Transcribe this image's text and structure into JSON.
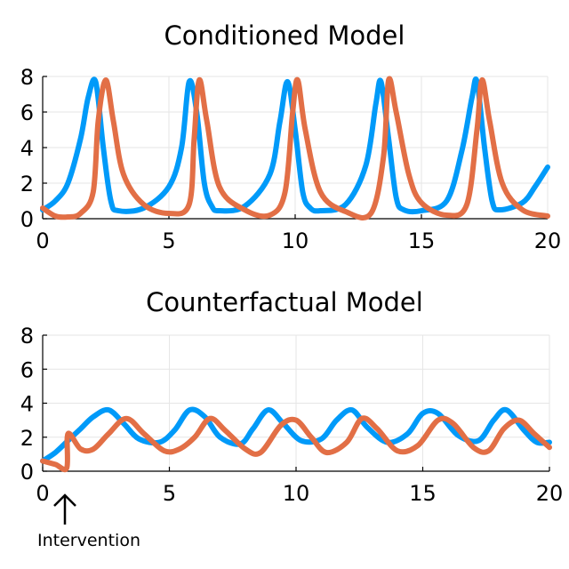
{
  "chart_data": [
    {
      "type": "line",
      "title": "Conditioned Model",
      "xlabel": "",
      "ylabel": "",
      "xlim": [
        0,
        20
      ],
      "ylim": [
        0,
        8
      ],
      "xticks": [
        "0",
        "5",
        "10",
        "15",
        "20"
      ],
      "yticks": [
        "0",
        "2",
        "4",
        "6",
        "8"
      ],
      "grid": true,
      "series": [
        {
          "color": "#009af9",
          "x": [
            0,
            0.5,
            1.0,
            1.5,
            1.8,
            2.1,
            2.4,
            2.7,
            3.0,
            4.0,
            5.0,
            5.5,
            5.8,
            6.1,
            6.4,
            6.7,
            7.0,
            8.0,
            9.0,
            9.4,
            9.7,
            10.0,
            10.3,
            10.6,
            11.0,
            12.0,
            12.8,
            13.2,
            13.4,
            13.7,
            14.0,
            14.3,
            15.0,
            16.0,
            16.6,
            17.0,
            17.2,
            17.5,
            17.8,
            18.1,
            19.0,
            19.5,
            20.0
          ],
          "values": [
            0.5,
            1.0,
            2.0,
            4.5,
            6.8,
            7.7,
            4.0,
            1.0,
            0.45,
            0.6,
            1.8,
            4.0,
            7.7,
            6.0,
            2.0,
            0.7,
            0.45,
            0.7,
            2.5,
            5.5,
            7.7,
            5.0,
            1.5,
            0.6,
            0.45,
            0.8,
            3.0,
            6.5,
            7.7,
            4.5,
            1.2,
            0.5,
            0.45,
            1.0,
            3.8,
            6.8,
            7.7,
            4.0,
            1.0,
            0.5,
            0.9,
            1.8,
            2.9
          ]
        },
        {
          "color": "#e26f46",
          "x": [
            0,
            0.5,
            1.0,
            1.5,
            2.0,
            2.2,
            2.5,
            2.8,
            3.2,
            4.0,
            5.0,
            5.8,
            6.0,
            6.2,
            6.5,
            7.0,
            8.0,
            9.0,
            9.6,
            9.9,
            10.1,
            10.4,
            11.0,
            12.0,
            13.0,
            13.5,
            13.7,
            14.0,
            14.5,
            15.0,
            16.0,
            16.8,
            17.2,
            17.4,
            17.7,
            18.2,
            19.0,
            20.0
          ],
          "values": [
            0.6,
            0.15,
            0.1,
            0.3,
            1.5,
            5.5,
            7.8,
            5.5,
            2.5,
            0.8,
            0.3,
            0.8,
            4.5,
            7.8,
            5.5,
            1.8,
            0.5,
            0.2,
            1.5,
            6.0,
            7.8,
            5.0,
            1.5,
            0.4,
            0.3,
            3.5,
            7.8,
            6.0,
            2.5,
            0.9,
            0.2,
            0.8,
            5.0,
            7.8,
            5.5,
            2.0,
            0.5,
            0.15
          ]
        }
      ]
    },
    {
      "type": "line",
      "title": "Counterfactual Model",
      "xlabel": "",
      "ylabel": "",
      "xlim": [
        0,
        20
      ],
      "ylim": [
        0,
        8
      ],
      "xticks": [
        "0",
        "5",
        "10",
        "15",
        "20"
      ],
      "yticks": [
        "0",
        "2",
        "4",
        "6",
        "8"
      ],
      "grid": true,
      "annotation": {
        "text": "Intervention",
        "x": 1.0,
        "marker": "arrow-up"
      },
      "series": [
        {
          "color": "#009af9",
          "x": [
            0,
            0.5,
            1.0,
            1.5,
            2.0,
            2.6,
            3.2,
            3.8,
            4.6,
            5.2,
            5.8,
            6.4,
            7.0,
            7.8,
            8.3,
            8.9,
            9.5,
            10.2,
            11.0,
            11.6,
            12.2,
            12.8,
            13.6,
            14.4,
            15.0,
            15.6,
            16.4,
            17.2,
            17.8,
            18.3,
            19.0,
            19.5,
            20.0
          ],
          "values": [
            0.6,
            1.1,
            1.8,
            2.5,
            3.2,
            3.6,
            2.8,
            1.9,
            1.7,
            2.4,
            3.6,
            3.2,
            2.0,
            1.6,
            2.5,
            3.6,
            2.8,
            1.8,
            1.9,
            3.0,
            3.6,
            2.6,
            1.7,
            2.2,
            3.4,
            3.4,
            2.1,
            1.8,
            3.0,
            3.6,
            2.4,
            1.7,
            1.7
          ]
        },
        {
          "color": "#e26f46",
          "x": [
            0,
            0.5,
            0.95,
            1.0,
            1.5,
            2.0,
            2.6,
            3.3,
            4.0,
            4.8,
            5.4,
            6.0,
            6.6,
            7.2,
            8.0,
            8.6,
            9.4,
            10.0,
            10.6,
            11.2,
            12.0,
            12.6,
            13.2,
            14.0,
            14.8,
            15.6,
            16.2,
            17.0,
            17.6,
            18.2,
            18.8,
            19.4,
            20.0
          ],
          "values": [
            0.6,
            0.4,
            0.2,
            2.2,
            1.3,
            1.3,
            2.2,
            3.1,
            2.2,
            1.2,
            1.3,
            2.0,
            3.1,
            2.4,
            1.3,
            1.1,
            2.7,
            3.0,
            2.0,
            1.1,
            1.7,
            3.1,
            2.5,
            1.2,
            1.5,
            3.0,
            2.8,
            1.4,
            1.2,
            2.5,
            3.0,
            2.2,
            1.4
          ]
        }
      ]
    }
  ]
}
